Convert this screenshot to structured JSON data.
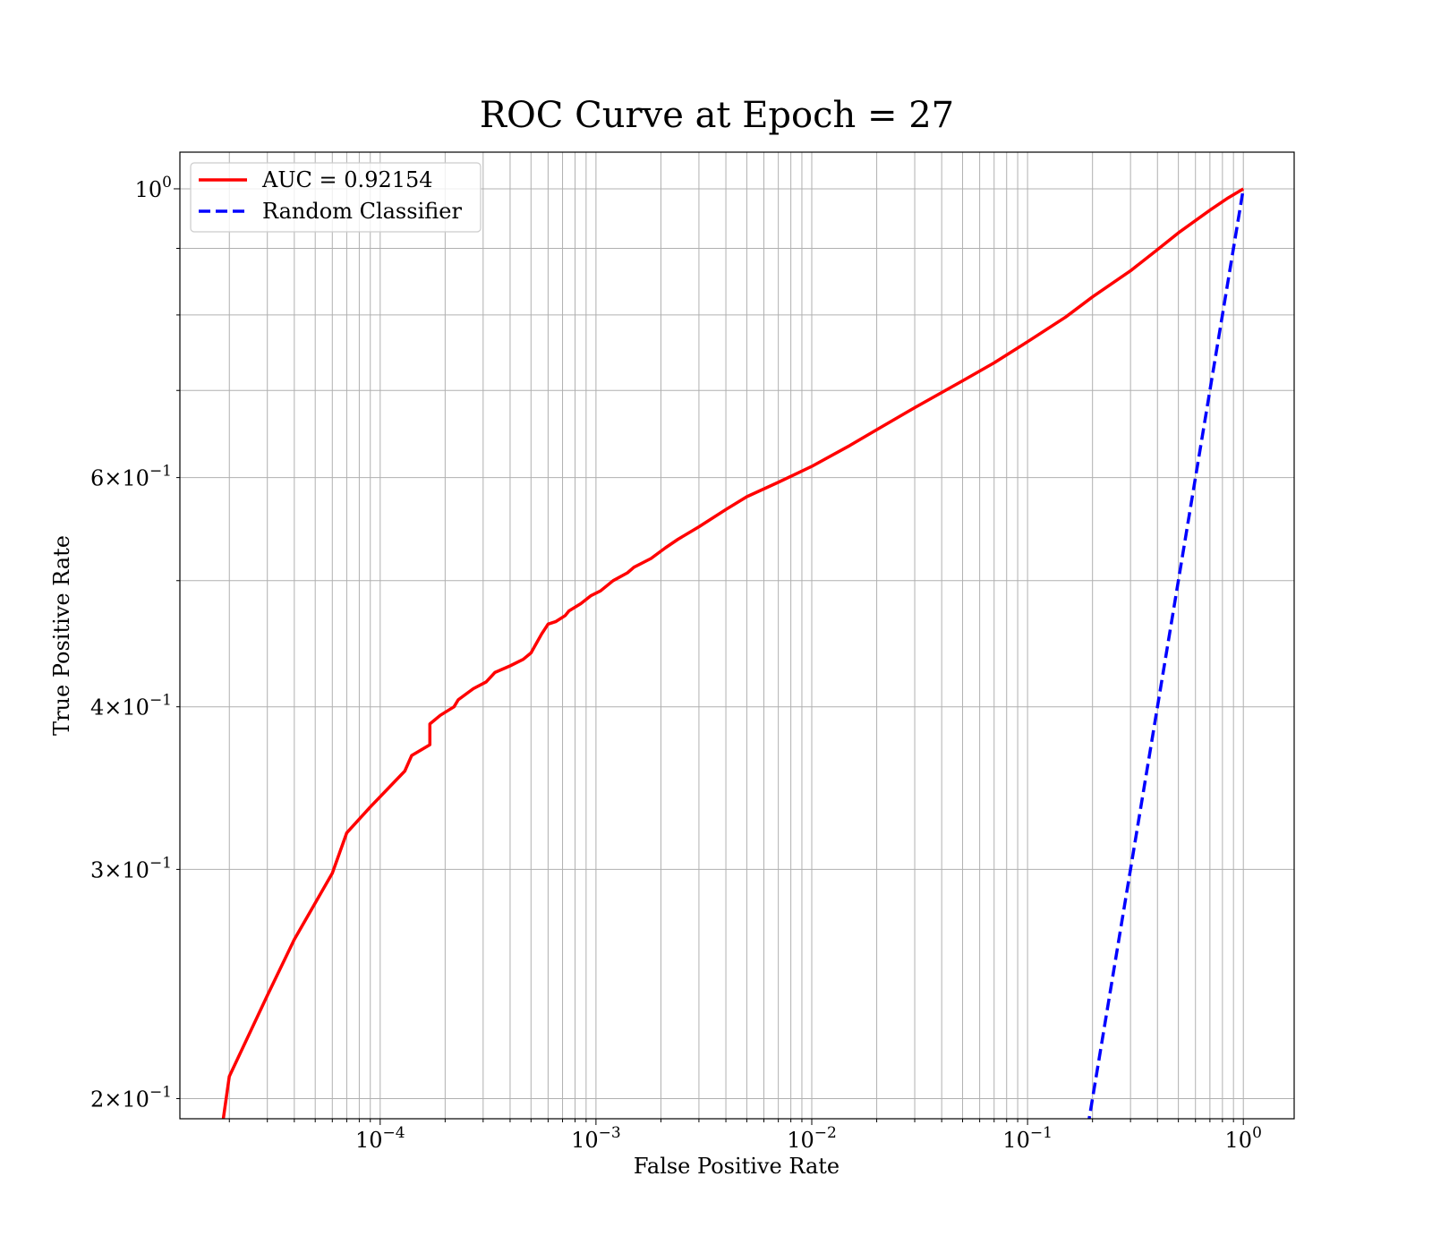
{
  "chart_data": {
    "type": "line",
    "title": "ROC Curve at Epoch = 27",
    "xlabel": "False Positive Rate",
    "ylabel": "True Positive Rate",
    "xscale": "log",
    "yscale": "log",
    "xlim": [
      1.18e-05,
      1.72
    ],
    "ylim": [
      0.193,
      1.067
    ],
    "grid": "on (major and minor)",
    "legend": {
      "placement": "top-left"
    },
    "x_ticks": [
      {
        "value": 0.0001,
        "base": "10",
        "exp": "−4"
      },
      {
        "value": 0.001,
        "base": "10",
        "exp": "−3"
      },
      {
        "value": 0.01,
        "base": "10",
        "exp": "−2"
      },
      {
        "value": 0.1,
        "base": "10",
        "exp": "−1"
      },
      {
        "value": 1,
        "base": "10",
        "exp": "0"
      }
    ],
    "y_ticks": [
      {
        "value": 0.2,
        "prefix": "2×",
        "base": "10",
        "exp": "−1"
      },
      {
        "value": 0.3,
        "prefix": "3×",
        "base": "10",
        "exp": "−1"
      },
      {
        "value": 0.4,
        "prefix": "4×",
        "base": "10",
        "exp": "−1"
      },
      {
        "value": 0.6,
        "prefix": "6×",
        "base": "10",
        "exp": "−1"
      },
      {
        "value": 1,
        "prefix": "",
        "base": "10",
        "exp": "0"
      }
    ],
    "series": [
      {
        "name": "AUC = 0.92154",
        "color": "#ff0000",
        "style": "solid",
        "x": [
          1.85e-05,
          2e-05,
          3e-05,
          4e-05,
          6e-05,
          7e-05,
          9e-05,
          0.00013,
          0.00014,
          0.00017,
          0.00017,
          0.00019,
          0.00022,
          0.00023,
          0.00027,
          0.00031,
          0.00034,
          0.0004,
          0.00046,
          0.0005,
          0.00056,
          0.0006,
          0.00065,
          0.00072,
          0.00075,
          0.00085,
          0.00095,
          0.00105,
          0.0012,
          0.0014,
          0.0015,
          0.0018,
          0.0021,
          0.0024,
          0.003,
          0.004,
          0.005,
          0.007,
          0.01,
          0.015,
          0.02,
          0.03,
          0.05,
          0.07,
          0.1,
          0.15,
          0.2,
          0.3,
          0.4,
          0.5,
          0.7,
          0.85,
          1.0
        ],
        "y": [
          0.19,
          0.208,
          0.24,
          0.265,
          0.298,
          0.32,
          0.335,
          0.357,
          0.367,
          0.374,
          0.388,
          0.394,
          0.4,
          0.405,
          0.413,
          0.418,
          0.425,
          0.43,
          0.435,
          0.44,
          0.455,
          0.463,
          0.465,
          0.47,
          0.474,
          0.48,
          0.487,
          0.491,
          0.5,
          0.507,
          0.512,
          0.52,
          0.53,
          0.538,
          0.55,
          0.567,
          0.58,
          0.595,
          0.612,
          0.635,
          0.653,
          0.679,
          0.712,
          0.735,
          0.763,
          0.797,
          0.826,
          0.865,
          0.898,
          0.925,
          0.963,
          0.984,
          1.0
        ]
      },
      {
        "name": "Random Classifier",
        "color": "#0000ff",
        "style": "dashed",
        "x": [
          0.19,
          1.0
        ],
        "y": [
          0.19,
          1.0
        ]
      }
    ]
  }
}
